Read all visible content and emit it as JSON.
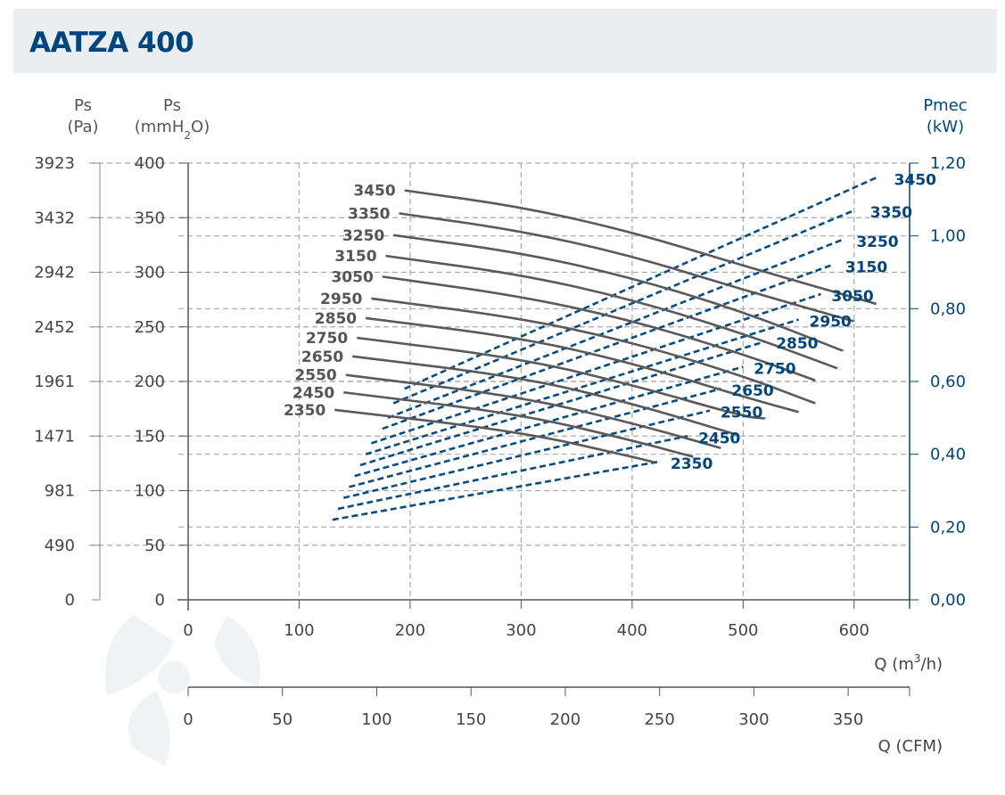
{
  "title": "AATZA 400",
  "axes": {
    "ps_pa": {
      "label_top": "Ps",
      "label_unit": "(Pa)",
      "ticks": [
        "3923",
        "3432",
        "2942",
        "2452",
        "1961",
        "1471",
        "981",
        "490",
        "0"
      ]
    },
    "ps_mm": {
      "label_top": "Ps",
      "label_unit_prefix": "(mmH",
      "label_unit_sub": "2",
      "label_unit_suffix": "O)",
      "ticks": [
        "400",
        "350",
        "300",
        "250",
        "200",
        "150",
        "100",
        "50",
        "0"
      ]
    },
    "pmec": {
      "label_top": "Pmec",
      "label_unit": "(kW)",
      "ticks": [
        "1,20",
        "1,00",
        "0,80",
        "0,60",
        "0,40",
        "0,20",
        "0,00"
      ]
    },
    "q_m3h": {
      "label_prefix": "Q (m",
      "label_sup": "3",
      "label_suffix": "/h)",
      "ticks": [
        "0",
        "100",
        "200",
        "300",
        "400",
        "500",
        "600"
      ]
    },
    "q_cfm": {
      "label": "Q (CFM)",
      "ticks": [
        "0",
        "50",
        "100",
        "150",
        "200",
        "250",
        "300",
        "350"
      ]
    }
  },
  "colors": {
    "pressure_curve": "#5a5a5a",
    "power_curve": "#0b4c80",
    "grid": "#a9a9a9",
    "axis_blue": "#00457c",
    "title_bg": "#ebeef1"
  },
  "chart_data": {
    "type": "line",
    "title": "AATZA 400",
    "xlabel": "Q (m3/h)",
    "ylabel": "Ps (mmH2O)",
    "y2label": "Pmec (kW)",
    "xlim": [
      0,
      650
    ],
    "ylim": [
      0,
      400
    ],
    "y2lim": [
      0,
      1.2
    ],
    "grid": true,
    "pressure_series": [
      {
        "name": "3450",
        "x": [
          195,
          300,
          400,
          500,
          620
        ],
        "y": [
          375,
          360,
          337,
          306,
          271
        ]
      },
      {
        "name": "3350",
        "x": [
          190,
          300,
          400,
          500,
          600
        ],
        "y": [
          354,
          338,
          315,
          284,
          255
        ]
      },
      {
        "name": "3250",
        "x": [
          185,
          300,
          400,
          500,
          590
        ],
        "y": [
          334,
          318,
          295,
          264,
          228
        ]
      },
      {
        "name": "3150",
        "x": [
          178,
          300,
          400,
          500,
          585
        ],
        "y": [
          315,
          298,
          275,
          244,
          212
        ]
      },
      {
        "name": "3050",
        "x": [
          175,
          300,
          400,
          500,
          565
        ],
        "y": [
          296,
          278,
          256,
          225,
          201
        ]
      },
      {
        "name": "2950",
        "x": [
          165,
          300,
          400,
          500,
          565
        ],
        "y": [
          276,
          258,
          236,
          205,
          180
        ]
      },
      {
        "name": "2850",
        "x": [
          160,
          300,
          400,
          500,
          550
        ],
        "y": [
          258,
          240,
          217,
          186,
          172
        ]
      },
      {
        "name": "2750",
        "x": [
          152,
          300,
          400,
          500,
          520
        ],
        "y": [
          240,
          221,
          197,
          168,
          166
        ]
      },
      {
        "name": "2650",
        "x": [
          148,
          300,
          400,
          495
        ],
        "y": [
          223,
          204,
          180,
          151
        ]
      },
      {
        "name": "2550",
        "x": [
          142,
          300,
          400,
          480
        ],
        "y": [
          206,
          186,
          162,
          139
        ]
      },
      {
        "name": "2450",
        "x": [
          140,
          300,
          400,
          455
        ],
        "y": [
          190,
          170,
          146,
          131
        ]
      },
      {
        "name": "2350",
        "x": [
          132,
          300,
          400,
          420
        ],
        "y": [
          174,
          154,
          131,
          126
        ]
      }
    ],
    "power_series": [
      {
        "name": "3450",
        "x": [
          195,
          620
        ],
        "y": [
          0.58,
          1.16
        ]
      },
      {
        "name": "3350",
        "x": [
          185,
          600
        ],
        "y": [
          0.54,
          1.07
        ]
      },
      {
        "name": "3250",
        "x": [
          180,
          590
        ],
        "y": [
          0.5,
          0.99
        ]
      },
      {
        "name": "3150",
        "x": [
          175,
          580
        ],
        "y": [
          0.47,
          0.92
        ]
      },
      {
        "name": "3050",
        "x": [
          165,
          570
        ],
        "y": [
          0.43,
          0.84
        ]
      },
      {
        "name": "2950",
        "x": [
          160,
          550
        ],
        "y": [
          0.4,
          0.77
        ]
      },
      {
        "name": "2850",
        "x": [
          155,
          520
        ],
        "y": [
          0.37,
          0.71
        ]
      },
      {
        "name": "2750",
        "x": [
          150,
          500
        ],
        "y": [
          0.34,
          0.64
        ]
      },
      {
        "name": "2650",
        "x": [
          145,
          480
        ],
        "y": [
          0.31,
          0.58
        ]
      },
      {
        "name": "2550",
        "x": [
          140,
          470
        ],
        "y": [
          0.28,
          0.52
        ]
      },
      {
        "name": "2450",
        "x": [
          135,
          450
        ],
        "y": [
          0.25,
          0.45
        ]
      },
      {
        "name": "2350",
        "x": [
          130,
          425
        ],
        "y": [
          0.22,
          0.38
        ]
      }
    ]
  }
}
